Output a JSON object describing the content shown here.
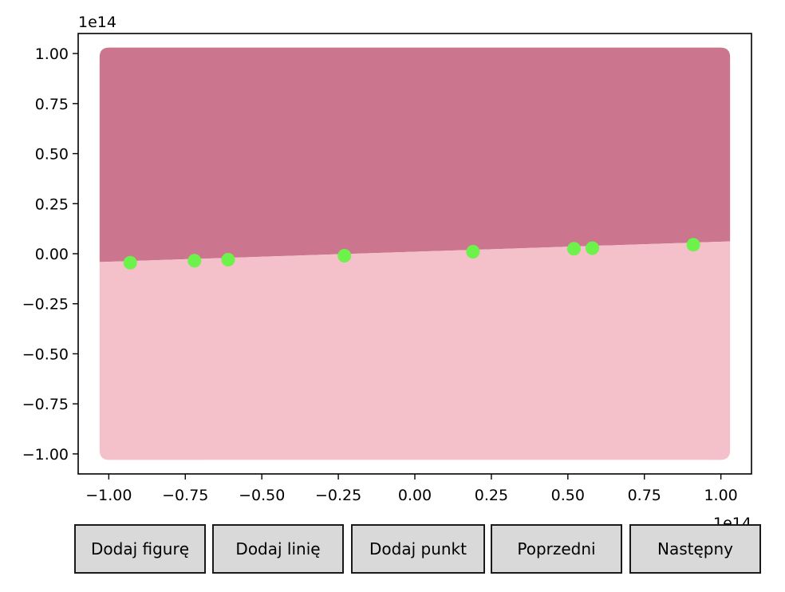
{
  "chart_data": {
    "type": "scatter",
    "title": "",
    "xlabel": "",
    "ylabel": "",
    "x_offset_label": "1e14",
    "y_offset_label": "1e14",
    "xlim": [
      -1.1,
      1.1
    ],
    "ylim": [
      -1.1,
      1.1
    ],
    "x_ticks": [
      -1.0,
      -0.75,
      -0.5,
      -0.25,
      0.0,
      0.25,
      0.5,
      0.75,
      1.0
    ],
    "x_tick_labels": [
      "−1.00",
      "−0.75",
      "−0.50",
      "−0.25",
      "0.00",
      "0.25",
      "0.50",
      "0.75",
      "1.00"
    ],
    "y_ticks": [
      1.0,
      0.75,
      0.5,
      0.25,
      0.0,
      -0.25,
      -0.5,
      -0.75,
      -1.0
    ],
    "y_tick_labels": [
      "1.00",
      "0.75",
      "0.50",
      "0.25",
      "0.00",
      "−0.25",
      "−0.50",
      "−0.75",
      "−1.00"
    ],
    "grid": false,
    "regions": [
      {
        "name": "above",
        "color": "#cc758f",
        "boundary_line": {
          "x": [
            -1.0,
            1.0
          ],
          "y": [
            -0.04,
            0.06
          ]
        }
      },
      {
        "name": "below",
        "color": "#f4c0ca"
      }
    ],
    "points": {
      "color": "#6cf24a",
      "x": [
        -0.93,
        -0.72,
        -0.61,
        -0.23,
        0.19,
        0.52,
        0.58,
        0.91
      ],
      "y": [
        -0.045,
        -0.035,
        -0.03,
        -0.01,
        0.01,
        0.025,
        0.028,
        0.045
      ]
    }
  },
  "buttons": {
    "add_figure": "Dodaj figurę",
    "add_line": "Dodaj linię",
    "add_point": "Dodaj punkt",
    "previous": "Poprzedni",
    "next": "Następny"
  }
}
